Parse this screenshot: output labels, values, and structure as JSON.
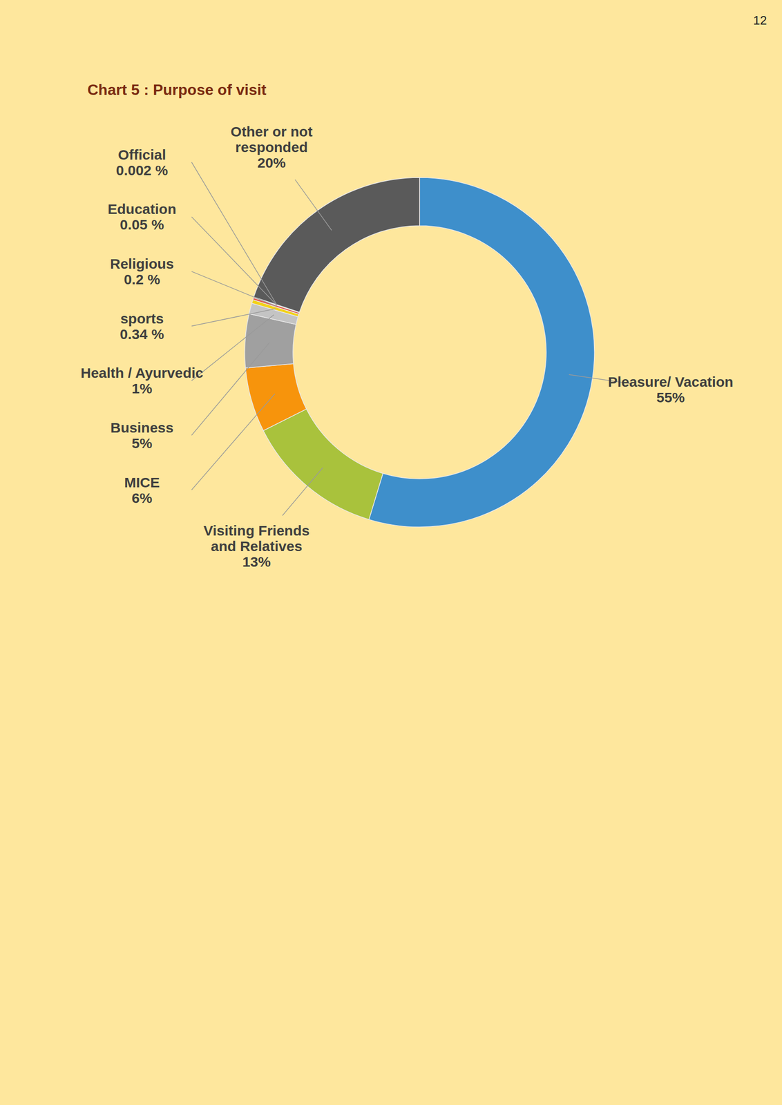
{
  "chart_data": {
    "type": "pie",
    "title": "Chart 5 : Purpose of visit",
    "annotations": [
      "12"
    ],
    "categories": [
      "Pleasure/ Vacation",
      "Visiting Friends and Relatives",
      "MICE",
      "Business",
      "Health / Ayurvedic",
      "sports",
      "Religious",
      "Education",
      "Official",
      "Other or not responded"
    ],
    "values": [
      55,
      13,
      6,
      5,
      1,
      0.34,
      0.2,
      0.05,
      0.002,
      20
    ],
    "value_labels": [
      "55%",
      "13%",
      "6%",
      "5%",
      "1%",
      "0.34 %",
      "0.2 %",
      "0.05 %",
      "0.002 %",
      "20%"
    ],
    "colors": [
      "#3e8fcb",
      "#a9c23c",
      "#f7940c",
      "#a0a0a0",
      "#c4c4c4",
      "#f3d21a",
      "#e05a4e",
      "#f2a8a0",
      "#dcdcdc",
      "#5a5a5a"
    ],
    "data_labels": true
  }
}
